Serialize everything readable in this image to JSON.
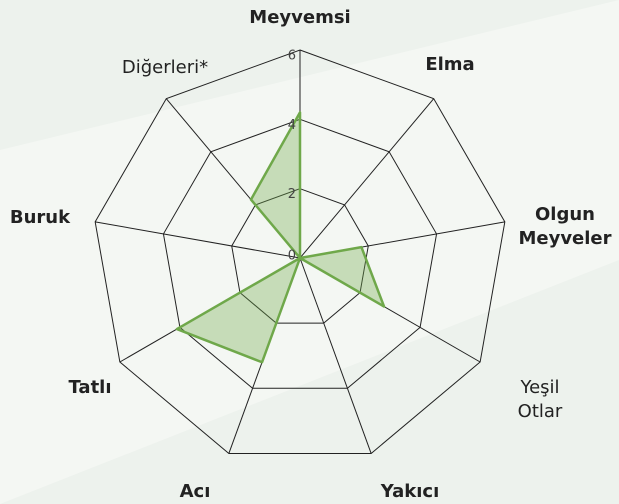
{
  "chart_data": {
    "type": "radar",
    "categories": [
      "Meyvemsi",
      "Elma",
      "Olgun Meyveler",
      "Yeşil Otlar",
      "Yakıcı",
      "Acı",
      "Tatlı",
      "Buruk",
      "Diğerleri*"
    ],
    "values": [
      4.2,
      0,
      1.8,
      2.8,
      0,
      3.2,
      4.1,
      0,
      2.2
    ],
    "color": "#6fa84a",
    "rlim": [
      0,
      6
    ],
    "rticks": [
      0,
      2,
      4,
      6
    ],
    "grid": true
  }
}
